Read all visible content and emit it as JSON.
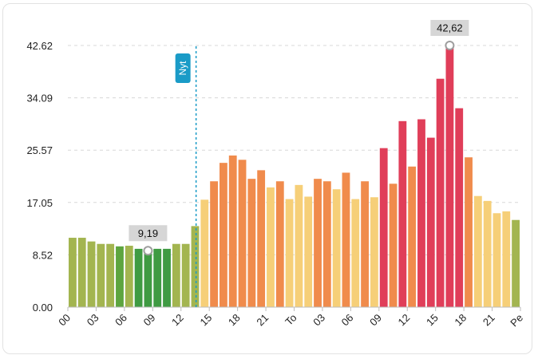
{
  "chart_data": {
    "type": "bar",
    "title": "",
    "xlabel": "",
    "ylabel": "",
    "ylim": [
      0,
      42.62
    ],
    "y_ticks": [
      "0.00",
      "8.52",
      "17.05",
      "25.57",
      "34.09",
      "42.62"
    ],
    "x_tick_labels": [
      "00",
      "03",
      "06",
      "09",
      "12",
      "15",
      "18",
      "21",
      "To",
      "03",
      "06",
      "09",
      "12",
      "15",
      "18",
      "21",
      "Pe"
    ],
    "hours_total": 48,
    "values": [
      11.3,
      11.3,
      10.7,
      10.3,
      10.3,
      9.9,
      10.0,
      9.5,
      9.19,
      9.5,
      9.5,
      10.3,
      10.3,
      13.2,
      17.5,
      20.5,
      23.5,
      24.7,
      24.0,
      20.9,
      22.3,
      19.5,
      20.5,
      17.6,
      19.9,
      18.0,
      20.9,
      20.5,
      19.2,
      21.9,
      17.6,
      20.5,
      17.9,
      25.9,
      20.1,
      30.3,
      22.9,
      30.6,
      27.6,
      37.2,
      42.62,
      32.4,
      24.4,
      18.1,
      17.3,
      15.3,
      15.6,
      14.2
    ],
    "colors": [
      "#a3b550",
      "#a3b550",
      "#a3b550",
      "#a3b550",
      "#a3b550",
      "#5da53f",
      "#a3b550",
      "#3f9b43",
      "#3f9b43",
      "#3f9b43",
      "#3f9b43",
      "#a3b550",
      "#a3b550",
      "#a3b550",
      "#f6cf78",
      "#f08b4c",
      "#f08b4c",
      "#f08b4c",
      "#f08b4c",
      "#f08b4c",
      "#f08b4c",
      "#f6cf78",
      "#f08b4c",
      "#f6cf78",
      "#f6cf78",
      "#f6cf78",
      "#f08b4c",
      "#f08b4c",
      "#f6cf78",
      "#f08b4c",
      "#f6cf78",
      "#f08b4c",
      "#f6cf78",
      "#e03e59",
      "#f08b4c",
      "#e03e59",
      "#f08b4c",
      "#e03e59",
      "#e03e59",
      "#e03e59",
      "#e03e59",
      "#e03e59",
      "#f08b4c",
      "#f6cf78",
      "#f6cf78",
      "#f6cf78",
      "#f6cf78",
      "#a3b550"
    ],
    "min_marker": {
      "index": 8,
      "label": "9,19"
    },
    "max_marker": {
      "index": 40,
      "label": "42,62"
    },
    "now_marker": {
      "position_hours": 13.6,
      "label": "Nyt"
    }
  },
  "colors": {
    "now_line": "#1a9bc7"
  }
}
